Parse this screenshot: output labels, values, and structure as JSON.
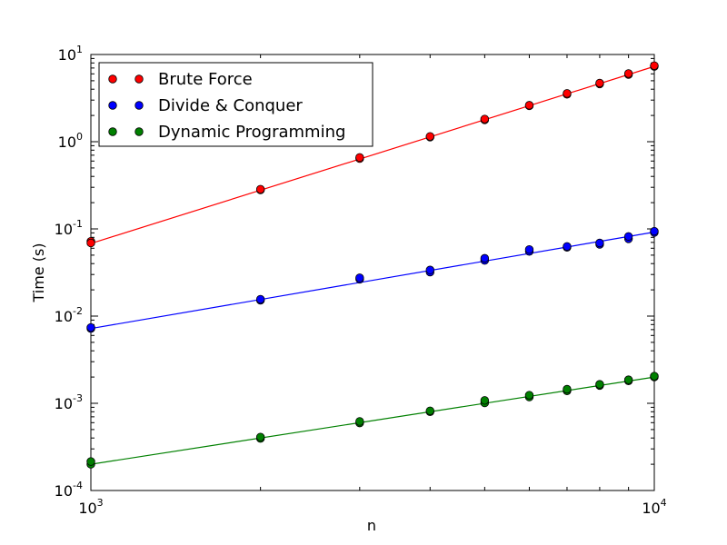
{
  "chart_data": {
    "type": "scatter",
    "title": "",
    "xlabel": "n",
    "ylabel": "Time (s)",
    "xscale": "log",
    "yscale": "log",
    "xlim": [
      1000,
      10000
    ],
    "ylim": [
      0.0001,
      10
    ],
    "x_ticks": [
      {
        "value": 1000,
        "base": "10",
        "exp": "3"
      },
      {
        "value": 10000,
        "base": "10",
        "exp": "4"
      }
    ],
    "y_ticks": [
      {
        "value": 0.0001,
        "base": "10",
        "exp": "-4"
      },
      {
        "value": 0.001,
        "base": "10",
        "exp": "-3"
      },
      {
        "value": 0.01,
        "base": "10",
        "exp": "-2"
      },
      {
        "value": 0.1,
        "base": "10",
        "exp": "-1"
      },
      {
        "value": 1,
        "base": "10",
        "exp": "0"
      },
      {
        "value": 10,
        "base": "10",
        "exp": "1"
      }
    ],
    "grid": false,
    "legend_position": "top-left",
    "series": [
      {
        "name": "Brute Force",
        "color": "#ff0000",
        "fit": {
          "x": [
            1000,
            10000
          ],
          "y": [
            0.068,
            7.3
          ]
        },
        "points": [
          [
            1000,
            0.072
          ],
          [
            1000,
            0.069
          ],
          [
            2000,
            0.28
          ],
          [
            2000,
            0.285
          ],
          [
            3000,
            0.64
          ],
          [
            3000,
            0.66
          ],
          [
            4000,
            1.13
          ],
          [
            4000,
            1.15
          ],
          [
            5000,
            1.78
          ],
          [
            5000,
            1.82
          ],
          [
            6000,
            2.58
          ],
          [
            6000,
            2.62
          ],
          [
            7000,
            3.5
          ],
          [
            7000,
            3.58
          ],
          [
            8000,
            4.6
          ],
          [
            8000,
            4.7
          ],
          [
            9000,
            5.9
          ],
          [
            9000,
            6.05
          ],
          [
            10000,
            7.3
          ],
          [
            10000,
            7.45
          ]
        ]
      },
      {
        "name": "Divide & Conquer",
        "color": "#0000ff",
        "fit": {
          "x": [
            1000,
            10000
          ],
          "y": [
            0.0072,
            0.092
          ]
        },
        "points": [
          [
            1000,
            0.0072
          ],
          [
            1000,
            0.0074
          ],
          [
            2000,
            0.0152
          ],
          [
            2000,
            0.0156
          ],
          [
            3000,
            0.0265
          ],
          [
            3000,
            0.0275
          ],
          [
            4000,
            0.032
          ],
          [
            4000,
            0.0338
          ],
          [
            5000,
            0.0435
          ],
          [
            5000,
            0.046
          ],
          [
            6000,
            0.0552
          ],
          [
            6000,
            0.058
          ],
          [
            7000,
            0.0615
          ],
          [
            7000,
            0.063
          ],
          [
            8000,
            0.0665
          ],
          [
            8000,
            0.069
          ],
          [
            9000,
            0.077
          ],
          [
            9000,
            0.082
          ],
          [
            10000,
            0.091
          ],
          [
            10000,
            0.094
          ]
        ]
      },
      {
        "name": "Dynamic Programming",
        "color": "#008000",
        "fit": {
          "x": [
            1000,
            10000
          ],
          "y": [
            0.0002,
            0.002
          ]
        },
        "points": [
          [
            1000,
            0.0002
          ],
          [
            1000,
            0.000215
          ],
          [
            2000,
            0.000395
          ],
          [
            2000,
            0.00041
          ],
          [
            3000,
            0.000595
          ],
          [
            3000,
            0.00062
          ],
          [
            4000,
            0.0008
          ],
          [
            4000,
            0.00082
          ],
          [
            5000,
            0.00101
          ],
          [
            5000,
            0.00108
          ],
          [
            6000,
            0.00118
          ],
          [
            6000,
            0.00124
          ],
          [
            7000,
            0.00139
          ],
          [
            7000,
            0.00145
          ],
          [
            8000,
            0.0016
          ],
          [
            8000,
            0.00165
          ],
          [
            9000,
            0.00181
          ],
          [
            9000,
            0.00186
          ],
          [
            10000,
            0.002
          ],
          [
            10000,
            0.00205
          ]
        ]
      }
    ]
  }
}
